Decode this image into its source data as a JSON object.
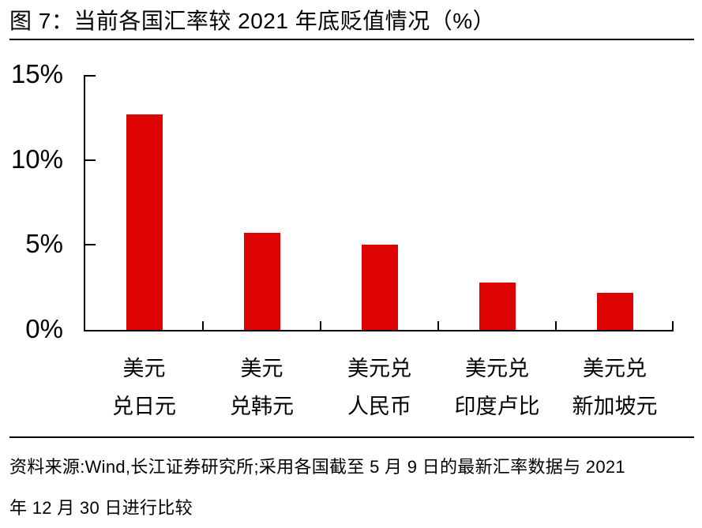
{
  "header": {
    "title": "图 7：当前各国汇率较 2021 年底贬值情况（%）"
  },
  "chart_data": {
    "type": "bar",
    "title": "当前各国汇率较 2021 年底贬值情况（%）",
    "figure_label": "图 7",
    "categories": [
      "美元兑日元",
      "美元兑韩元",
      "美元兑人民币",
      "美元兑印度卢比",
      "美元兑新加坡元"
    ],
    "category_labels": [
      [
        "美元",
        "兑日元"
      ],
      [
        "美元",
        "兑韩元"
      ],
      [
        "美元兑",
        "人民币"
      ],
      [
        "美元兑",
        "印度卢比"
      ],
      [
        "美元兑",
        "新加坡元"
      ]
    ],
    "values": [
      12.7,
      5.7,
      5.0,
      2.8,
      2.2
    ],
    "unit": "%",
    "xlabel": "",
    "ylabel": "",
    "ylim": [
      0,
      15
    ],
    "ytick_values": [
      15,
      10,
      5,
      0
    ],
    "ytick_labels": [
      "15%",
      "10%",
      "5%",
      "0%"
    ],
    "bar_color": "#de0303",
    "grid": false,
    "legend": false
  },
  "footer": {
    "lines": [
      "资料来源:Wind,长江证券研究所;采用各国截至 5 月 9 日的最新汇率数据与 2021",
      "年 12 月 30 日进行比较"
    ]
  },
  "colors": {
    "bar": "#de0303",
    "text": "#000000",
    "axis": "#000000",
    "background": "#ffffff"
  }
}
